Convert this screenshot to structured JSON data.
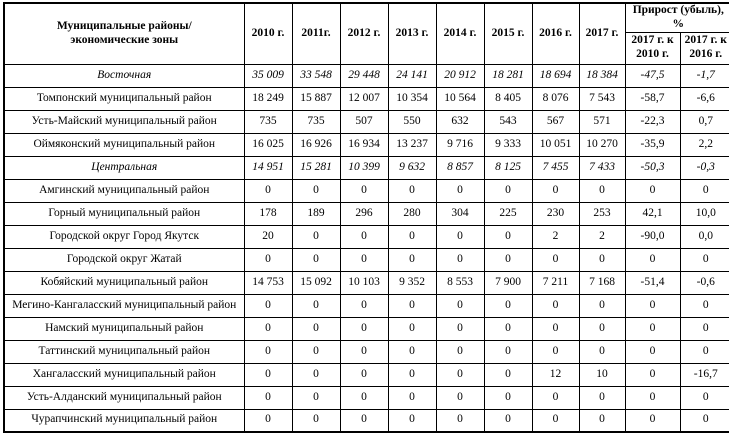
{
  "table": {
    "header": {
      "name_col": "Муниципальные районы/\nэкономические зоны",
      "years": [
        "2010 г.",
        "2011г.",
        "2012 г.",
        "2013 г.",
        "2014 г.",
        "2015 г.",
        "2016 г.",
        "2017 г."
      ],
      "growth_title": "Прирост (убыль), %",
      "growth_sub": [
        "2017 г. к\n2010 г.",
        "2017 г. к\n2016 г."
      ]
    },
    "rows": [
      {
        "name": "Восточная",
        "type": "zone",
        "values": [
          "35 009",
          "33 548",
          "29 448",
          "24 141",
          "20 912",
          "18 281",
          "18 694",
          "18 384",
          "-47,5",
          "-1,7"
        ]
      },
      {
        "name": "Томпонский муниципальный район",
        "type": "district",
        "values": [
          "18 249",
          "15 887",
          "12 007",
          "10 354",
          "10 564",
          "8 405",
          "8 076",
          "7 543",
          "-58,7",
          "-6,6"
        ]
      },
      {
        "name": "Усть-Майский муниципальный район",
        "type": "district",
        "values": [
          "735",
          "735",
          "507",
          "550",
          "632",
          "543",
          "567",
          "571",
          "-22,3",
          "0,7"
        ]
      },
      {
        "name": "Оймяконский муниципальный район",
        "type": "district",
        "values": [
          "16 025",
          "16 926",
          "16 934",
          "13 237",
          "9 716",
          "9 333",
          "10 051",
          "10 270",
          "-35,9",
          "2,2"
        ]
      },
      {
        "name": "Центральная",
        "type": "zone",
        "values": [
          "14 951",
          "15 281",
          "10 399",
          "9 632",
          "8 857",
          "8 125",
          "7 455",
          "7 433",
          "-50,3",
          "-0,3"
        ]
      },
      {
        "name": "Амгинский муниципальный район",
        "type": "district",
        "values": [
          "0",
          "0",
          "0",
          "0",
          "0",
          "0",
          "0",
          "0",
          "0",
          "0"
        ]
      },
      {
        "name": "Горный муниципальный район",
        "type": "district",
        "values": [
          "178",
          "189",
          "296",
          "280",
          "304",
          "225",
          "230",
          "253",
          "42,1",
          "10,0"
        ]
      },
      {
        "name": "Городской округ Город Якутск",
        "type": "district",
        "values": [
          "20",
          "0",
          "0",
          "0",
          "0",
          "0",
          "2",
          "2",
          "-90,0",
          "0,0"
        ]
      },
      {
        "name": "Городской округ Жатай",
        "type": "district",
        "values": [
          "0",
          "0",
          "0",
          "0",
          "0",
          "0",
          "0",
          "0",
          "0",
          "0"
        ]
      },
      {
        "name": "Кобяйский муниципальный район",
        "type": "district",
        "values": [
          "14 753",
          "15 092",
          "10 103",
          "9 352",
          "8 553",
          "7 900",
          "7 211",
          "7 168",
          "-51,4",
          "-0,6"
        ]
      },
      {
        "name": "Мегино-Кангаласский муниципальный район",
        "type": "district",
        "values": [
          "0",
          "0",
          "0",
          "0",
          "0",
          "0",
          "0",
          "0",
          "0",
          "0"
        ]
      },
      {
        "name": "Намский муниципальный район",
        "type": "district",
        "values": [
          "0",
          "0",
          "0",
          "0",
          "0",
          "0",
          "0",
          "0",
          "0",
          "0"
        ]
      },
      {
        "name": "Таттинский муниципальный район",
        "type": "district",
        "values": [
          "0",
          "0",
          "0",
          "0",
          "0",
          "0",
          "0",
          "0",
          "0",
          "0"
        ]
      },
      {
        "name": "Хангаласский муниципальный район",
        "type": "district",
        "values": [
          "0",
          "0",
          "0",
          "0",
          "0",
          "0",
          "12",
          "10",
          "0",
          "-16,7"
        ]
      },
      {
        "name": "Усть-Алданский муниципальный район",
        "type": "district",
        "values": [
          "0",
          "0",
          "0",
          "0",
          "0",
          "0",
          "0",
          "0",
          "0",
          "0"
        ]
      },
      {
        "name": "Чурапчинский муниципальный район",
        "type": "district",
        "values": [
          "0",
          "0",
          "0",
          "0",
          "0",
          "0",
          "0",
          "0",
          "0",
          "0"
        ]
      }
    ]
  }
}
